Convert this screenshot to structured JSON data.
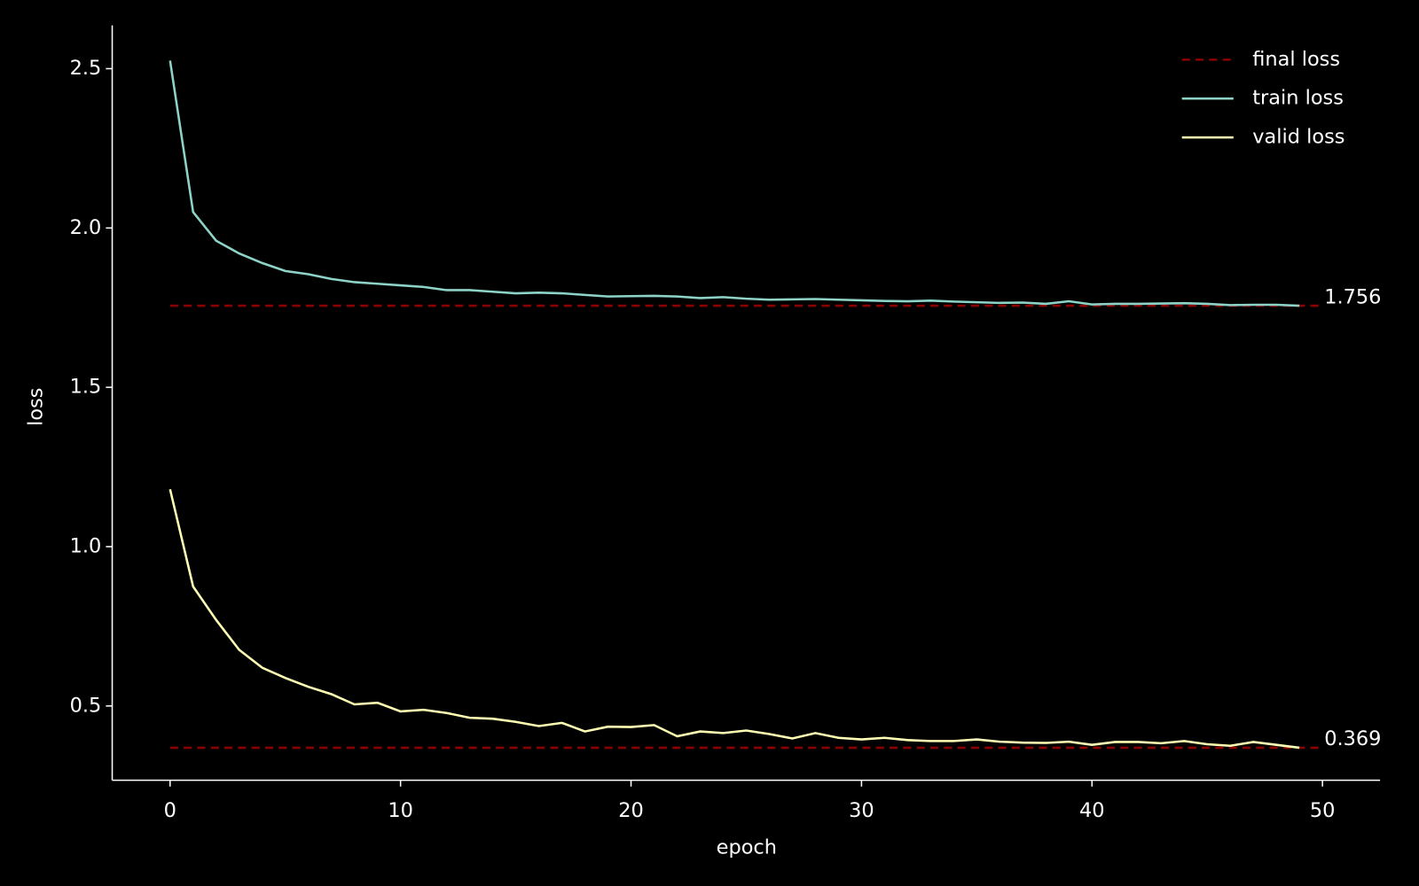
{
  "chart_data": {
    "type": "line",
    "x_label": "epoch",
    "y_label": "loss",
    "x": [
      0,
      1,
      2,
      3,
      4,
      5,
      6,
      7,
      8,
      9,
      10,
      11,
      12,
      13,
      14,
      15,
      16,
      17,
      18,
      19,
      20,
      21,
      22,
      23,
      24,
      25,
      26,
      27,
      28,
      29,
      30,
      31,
      32,
      33,
      34,
      35,
      36,
      37,
      38,
      39,
      40,
      41,
      42,
      43,
      44,
      45,
      46,
      47,
      48,
      49
    ],
    "series": [
      {
        "name": "train loss",
        "color": "#8dd3c7",
        "values": [
          2.525,
          2.05,
          1.96,
          1.92,
          1.89,
          1.865,
          1.855,
          1.84,
          1.83,
          1.825,
          1.82,
          1.815,
          1.805,
          1.805,
          1.8,
          1.795,
          1.797,
          1.795,
          1.79,
          1.785,
          1.786,
          1.787,
          1.785,
          1.78,
          1.783,
          1.778,
          1.775,
          1.776,
          1.777,
          1.775,
          1.773,
          1.771,
          1.77,
          1.772,
          1.769,
          1.767,
          1.765,
          1.766,
          1.762,
          1.77,
          1.76,
          1.762,
          1.762,
          1.763,
          1.764,
          1.762,
          1.758,
          1.759,
          1.759,
          1.756
        ]
      },
      {
        "name": "valid loss",
        "color": "#ffffb3",
        "values": [
          1.18,
          0.875,
          0.77,
          0.676,
          0.62,
          0.588,
          0.56,
          0.537,
          0.505,
          0.51,
          0.483,
          0.488,
          0.478,
          0.463,
          0.46,
          0.45,
          0.437,
          0.447,
          0.42,
          0.435,
          0.434,
          0.44,
          0.405,
          0.42,
          0.415,
          0.423,
          0.412,
          0.398,
          0.415,
          0.4,
          0.395,
          0.4,
          0.393,
          0.39,
          0.39,
          0.395,
          0.388,
          0.385,
          0.384,
          0.388,
          0.378,
          0.387,
          0.387,
          0.383,
          0.39,
          0.38,
          0.375,
          0.387,
          0.378,
          0.369
        ]
      }
    ],
    "reference_lines": {
      "name": "final loss",
      "color": "#8b0000",
      "style": "dashed",
      "values": [
        1.756,
        0.369
      ],
      "x_range": [
        0,
        50
      ]
    },
    "xlim": [
      -2.51,
      52.5
    ],
    "ylim": [
      0.267,
      2.636
    ],
    "xticks": [
      0,
      10,
      20,
      30,
      40,
      50
    ],
    "yticks": [
      0.5,
      {
        "value": 1,
        "label": "1.0"
      },
      1.5,
      {
        "value": 2,
        "label": "2.0"
      },
      2.5
    ],
    "legend": "upper right",
    "grid": false
  }
}
